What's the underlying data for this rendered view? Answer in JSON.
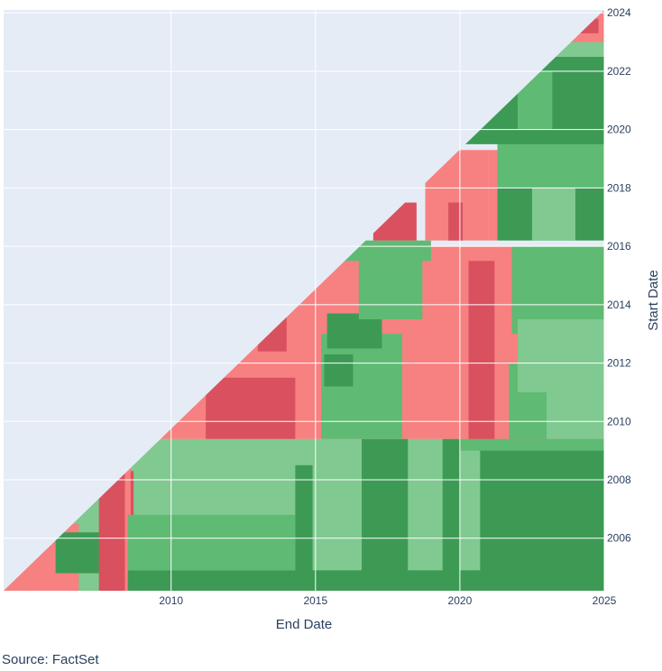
{
  "chart_data": {
    "type": "heatmap",
    "title": "",
    "xlabel": "End Date",
    "ylabel": "Start Date",
    "x_range": [
      2004.2,
      2025.0
    ],
    "y_range": [
      2004.2,
      2024.1
    ],
    "x_ticks": [
      "2010",
      "2015",
      "2020",
      "2025"
    ],
    "y_ticks": [
      "2006",
      "2008",
      "2010",
      "2012",
      "2014",
      "2016",
      "2018",
      "2020",
      "2022",
      "2024"
    ],
    "grid": true,
    "legend": "none",
    "plot_background": "#e5ecf6",
    "colors": {
      "dark_red": "#d9515f",
      "light_red": "#f78080",
      "dark_green": "#3d9a55",
      "mid_green": "#5fba73",
      "light_green": "#80c990"
    },
    "regions": [
      {
        "start": [
          2004.2,
          2009.4
        ],
        "end": [
          2004.2,
          2025.0
        ],
        "color": "light_green"
      },
      {
        "start": [
          2004.2,
          2006.5
        ],
        "end": [
          2004.2,
          2006.8
        ],
        "color": "light_red"
      },
      {
        "start": [
          2004.8,
          2006.2
        ],
        "end": [
          2006.0,
          2007.6
        ],
        "color": "dark_green"
      },
      {
        "start": [
          2004.2,
          2008.3
        ],
        "end": [
          2007.5,
          2008.7
        ],
        "color": "dark_red"
      },
      {
        "start": [
          2004.2,
          2008.5
        ],
        "end": [
          2008.4,
          2008.6
        ],
        "color": "light_red"
      },
      {
        "start": [
          2004.2,
          2009.4
        ],
        "end": [
          2016.6,
          2018.2
        ],
        "color": "dark_green"
      },
      {
        "start": [
          2004.2,
          2009.4
        ],
        "end": [
          2019.4,
          2020.0
        ],
        "color": "dark_green"
      },
      {
        "start": [
          2004.2,
          2009.4
        ],
        "end": [
          2021.8,
          2025.0
        ],
        "color": "dark_green"
      },
      {
        "start": [
          2004.2,
          2009.4
        ],
        "end": [
          2020.7,
          2021.8
        ],
        "color": "dark_green"
      },
      {
        "start": [
          2004.2,
          2008.5
        ],
        "end": [
          2014.3,
          2014.9
        ],
        "color": "dark_green"
      },
      {
        "start": [
          2004.2,
          2004.9
        ],
        "end": [
          2008.5,
          2025.0
        ],
        "color": "dark_green"
      },
      {
        "start": [
          2004.9,
          2006.8
        ],
        "end": [
          2008.5,
          2014.3
        ],
        "color": "mid_green"
      },
      {
        "start": [
          2009.0,
          2009.4
        ],
        "end": [
          2020.0,
          2025.0
        ],
        "color": "mid_green"
      },
      {
        "start": [
          2009.4,
          2016.0
        ],
        "end": [
          2009.4,
          2025.0
        ],
        "color": "light_red"
      },
      {
        "start": [
          2009.4,
          2011.5
        ],
        "end": [
          2011.2,
          2014.3
        ],
        "color": "dark_red"
      },
      {
        "start": [
          2010.5,
          2012.0
        ],
        "end": [
          2009.4,
          2010.7
        ],
        "color": "dark_red"
      },
      {
        "start": [
          2012.4,
          2013.7
        ],
        "end": [
          2013.0,
          2014.0
        ],
        "color": "dark_red"
      },
      {
        "start": [
          2009.4,
          2015.5
        ],
        "end": [
          2020.3,
          2021.2
        ],
        "color": "dark_red"
      },
      {
        "start": [
          2009.4,
          2013.0
        ],
        "end": [
          2015.2,
          2018.0
        ],
        "color": "mid_green"
      },
      {
        "start": [
          2011.2,
          2012.3
        ],
        "end": [
          2015.3,
          2016.3
        ],
        "color": "dark_green"
      },
      {
        "start": [
          2012.5,
          2013.7
        ],
        "end": [
          2015.4,
          2017.3
        ],
        "color": "dark_green"
      },
      {
        "start": [
          2013.5,
          2015.5
        ],
        "end": [
          2016.5,
          2018.7
        ],
        "color": "mid_green"
      },
      {
        "start": [
          2009.4,
          2012.0
        ],
        "end": [
          2021.7,
          2025.0
        ],
        "color": "mid_green"
      },
      {
        "start": [
          2009.4,
          2011.0
        ],
        "end": [
          2023.0,
          2025.0
        ],
        "color": "light_green"
      },
      {
        "start": [
          2013.0,
          2016.0
        ],
        "end": [
          2021.8,
          2025.0
        ],
        "color": "mid_green"
      },
      {
        "start": [
          2011.0,
          2013.5
        ],
        "end": [
          2022.0,
          2025.0
        ],
        "color": "light_green"
      },
      {
        "start": [
          2015.5,
          2016.2
        ],
        "end": [
          2016.0,
          2019.0
        ],
        "color": "mid_green"
      },
      {
        "start": [
          2016.2,
          2017.5
        ],
        "end": [
          2017.0,
          2018.5
        ],
        "color": "dark_red"
      },
      {
        "start": [
          2016.2,
          2019.3
        ],
        "end": [
          2018.8,
          2021.0
        ],
        "color": "light_red"
      },
      {
        "start": [
          2016.2,
          2017.5
        ],
        "end": [
          2019.6,
          2020.1
        ],
        "color": "dark_red"
      },
      {
        "start": [
          2016.2,
          2019.3
        ],
        "end": [
          2021.0,
          2021.3
        ],
        "color": "light_red"
      },
      {
        "start": [
          2016.2,
          2018.0
        ],
        "end": [
          2021.3,
          2025.0
        ],
        "color": "dark_green"
      },
      {
        "start": [
          2016.2,
          2018.0
        ],
        "end": [
          2022.5,
          2024.0
        ],
        "color": "light_green"
      },
      {
        "start": [
          2018.0,
          2020.5
        ],
        "end": [
          2021.3,
          2025.0
        ],
        "color": "mid_green"
      },
      {
        "start": [
          2019.5,
          2022.5
        ],
        "end": [
          2019.5,
          2025.0
        ],
        "color": "dark_green"
      },
      {
        "start": [
          2020.0,
          2022.0
        ],
        "end": [
          2022.0,
          2023.2
        ],
        "color": "mid_green"
      },
      {
        "start": [
          2022.5,
          2023.3
        ],
        "end": [
          2022.5,
          2025.0
        ],
        "color": "light_green"
      },
      {
        "start": [
          2023.0,
          2024.1
        ],
        "end": [
          2023.0,
          2025.0
        ],
        "color": "light_red"
      },
      {
        "start": [
          2023.3,
          2023.8
        ],
        "end": [
          2024.0,
          2024.8
        ],
        "color": "dark_red"
      }
    ]
  },
  "source_note": "Source: FactSet"
}
